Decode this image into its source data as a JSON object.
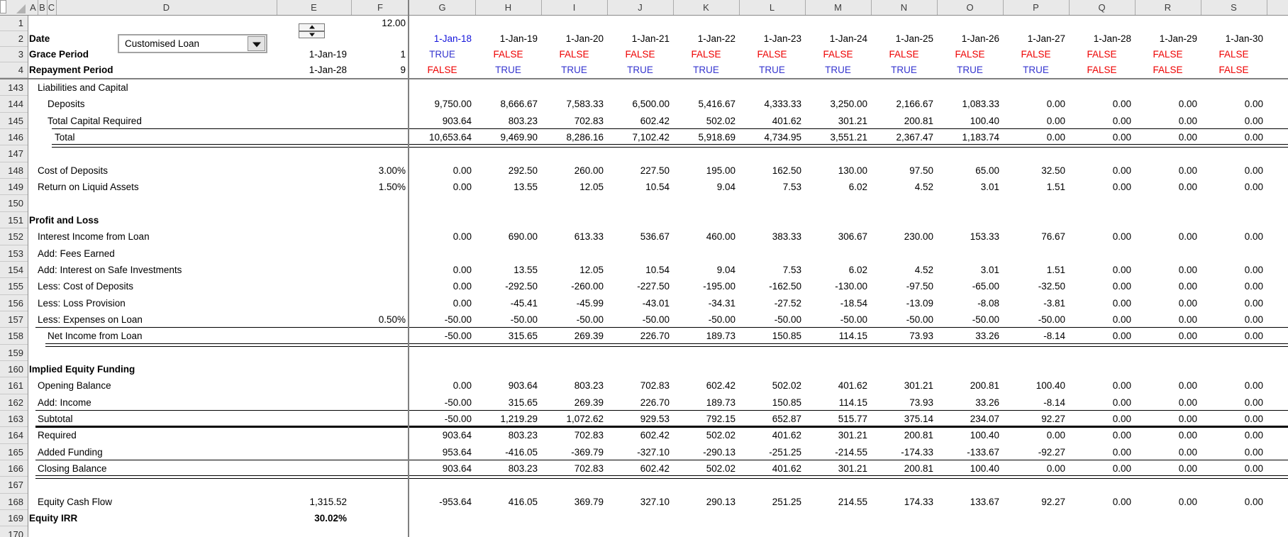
{
  "sheet": {
    "colors": {
      "true_text": "#3535CF",
      "false_text": "#EE0000",
      "input_blue": "#1414DB",
      "header_bg": "#E9E9E9",
      "body_text": "#000000"
    },
    "column_letters": [
      "A",
      "B",
      "C",
      "D",
      "E",
      "F",
      "G",
      "H",
      "I",
      "J",
      "K",
      "L",
      "M",
      "N",
      "O",
      "P",
      "Q",
      "R",
      "S"
    ],
    "controls": {
      "loan_type_dropdown": {
        "value": "Customised Loan"
      }
    },
    "frozen_rows": {
      "row1": {
        "num": "1",
        "f": "12.00"
      },
      "row2": {
        "num": "2",
        "label": "Date",
        "dates": [
          "1-Jan-18",
          "1-Jan-19",
          "1-Jan-20",
          "1-Jan-21",
          "1-Jan-22",
          "1-Jan-23",
          "1-Jan-24",
          "1-Jan-25",
          "1-Jan-26",
          "1-Jan-27",
          "1-Jan-28",
          "1-Jan-29",
          "1-Jan-30"
        ]
      },
      "row3": {
        "num": "3",
        "label": "Grace Period",
        "e": "1-Jan-19",
        "f": "1",
        "flags": [
          "TRUE",
          "FALSE",
          "FALSE",
          "FALSE",
          "FALSE",
          "FALSE",
          "FALSE",
          "FALSE",
          "FALSE",
          "FALSE",
          "FALSE",
          "FALSE",
          "FALSE"
        ]
      },
      "row4": {
        "num": "4",
        "label": "Repayment Period",
        "e": "1-Jan-28",
        "f": "9",
        "flags": [
          "FALSE",
          "TRUE",
          "TRUE",
          "TRUE",
          "TRUE",
          "TRUE",
          "TRUE",
          "TRUE",
          "TRUE",
          "TRUE",
          "FALSE",
          "FALSE",
          "FALSE"
        ]
      }
    },
    "body_rows": [
      {
        "num": "143",
        "label": "Liabilities and Capital",
        "indent": 1
      },
      {
        "num": "144",
        "label": "Deposits",
        "indent": 2,
        "values": [
          "9,750.00",
          "8,666.67",
          "7,583.33",
          "6,500.00",
          "5,416.67",
          "4,333.33",
          "3,250.00",
          "2,166.67",
          "1,083.33",
          "0.00",
          "0.00",
          "0.00",
          "0.00"
        ]
      },
      {
        "num": "145",
        "label": "Total Capital Required",
        "indent": 2,
        "border": "single",
        "border_x": 73,
        "values": [
          "903.64",
          "803.23",
          "702.83",
          "602.42",
          "502.02",
          "401.62",
          "301.21",
          "200.81",
          "100.40",
          "0.00",
          "0.00",
          "0.00",
          "0.00"
        ]
      },
      {
        "num": "146",
        "label": "Total",
        "indent": 3,
        "border": "double",
        "border_x": 73,
        "values": [
          "10,653.64",
          "9,469.90",
          "8,286.16",
          "7,102.42",
          "5,918.69",
          "4,734.95",
          "3,551.21",
          "2,367.47",
          "1,183.74",
          "0.00",
          "0.00",
          "0.00",
          "0.00"
        ]
      },
      {
        "num": "147"
      },
      {
        "num": "148",
        "label": "Cost of Deposits",
        "indent": 1,
        "f": "3.00%",
        "values": [
          "0.00",
          "292.50",
          "260.00",
          "227.50",
          "195.00",
          "162.50",
          "130.00",
          "97.50",
          "65.00",
          "32.50",
          "0.00",
          "0.00",
          "0.00"
        ]
      },
      {
        "num": "149",
        "label": "Return on Liquid Assets",
        "indent": 1,
        "f": "1.50%",
        "values": [
          "0.00",
          "13.55",
          "12.05",
          "10.54",
          "9.04",
          "7.53",
          "6.02",
          "4.52",
          "3.01",
          "1.51",
          "0.00",
          "0.00",
          "0.00"
        ]
      },
      {
        "num": "150"
      },
      {
        "num": "151",
        "label": "Profit and Loss",
        "indent": 0,
        "bold": true
      },
      {
        "num": "152",
        "label": "Interest Income from Loan",
        "indent": 1,
        "values": [
          "0.00",
          "690.00",
          "613.33",
          "536.67",
          "460.00",
          "383.33",
          "306.67",
          "230.00",
          "153.33",
          "76.67",
          "0.00",
          "0.00",
          "0.00"
        ]
      },
      {
        "num": "153",
        "label": "Add: Fees Earned",
        "indent": 1
      },
      {
        "num": "154",
        "label": "Add: Interest on Safe Investments",
        "indent": 1,
        "values": [
          "0.00",
          "13.55",
          "12.05",
          "10.54",
          "9.04",
          "7.53",
          "6.02",
          "4.52",
          "3.01",
          "1.51",
          "0.00",
          "0.00",
          "0.00"
        ]
      },
      {
        "num": "155",
        "label": "Less: Cost of Deposits",
        "indent": 1,
        "values": [
          "0.00",
          "-292.50",
          "-260.00",
          "-227.50",
          "-195.00",
          "-162.50",
          "-130.00",
          "-97.50",
          "-65.00",
          "-32.50",
          "0.00",
          "0.00",
          "0.00"
        ]
      },
      {
        "num": "156",
        "label": "Less: Loss Provision",
        "indent": 1,
        "values": [
          "0.00",
          "-45.41",
          "-45.99",
          "-43.01",
          "-34.31",
          "-27.52",
          "-18.54",
          "-13.09",
          "-8.08",
          "-3.81",
          "0.00",
          "0.00",
          "0.00"
        ]
      },
      {
        "num": "157",
        "label": "Less: Expenses on Loan",
        "indent": 1,
        "f": "0.50%",
        "border": "single",
        "border_x": 50,
        "values": [
          "-50.00",
          "-50.00",
          "-50.00",
          "-50.00",
          "-50.00",
          "-50.00",
          "-50.00",
          "-50.00",
          "-50.00",
          "-50.00",
          "0.00",
          "0.00",
          "0.00"
        ]
      },
      {
        "num": "158",
        "label": "Net Income from Loan",
        "indent": 2,
        "border": "double",
        "border_x": 64,
        "values": [
          "-50.00",
          "315.65",
          "269.39",
          "226.70",
          "189.73",
          "150.85",
          "114.15",
          "73.93",
          "33.26",
          "-8.14",
          "0.00",
          "0.00",
          "0.00"
        ]
      },
      {
        "num": "159"
      },
      {
        "num": "160",
        "label": "Implied Equity Funding",
        "indent": 0,
        "bold": true
      },
      {
        "num": "161",
        "label": "Opening Balance",
        "indent": 1,
        "values": [
          "0.00",
          "903.64",
          "803.23",
          "702.83",
          "602.42",
          "502.02",
          "401.62",
          "301.21",
          "200.81",
          "100.40",
          "0.00",
          "0.00",
          "0.00"
        ]
      },
      {
        "num": "162",
        "label": "Add: Income",
        "indent": 1,
        "border": "single",
        "border_x": 50,
        "values": [
          "-50.00",
          "315.65",
          "269.39",
          "226.70",
          "189.73",
          "150.85",
          "114.15",
          "73.93",
          "33.26",
          "-8.14",
          "0.00",
          "0.00",
          "0.00"
        ]
      },
      {
        "num": "163",
        "label": "Subtotal",
        "indent": 1,
        "border": "thick",
        "border_x": 50,
        "values": [
          "-50.00",
          "1,219.29",
          "1,072.62",
          "929.53",
          "792.15",
          "652.87",
          "515.77",
          "375.14",
          "234.07",
          "92.27",
          "0.00",
          "0.00",
          "0.00"
        ]
      },
      {
        "num": "164",
        "label": "Required",
        "indent": 1,
        "values": [
          "903.64",
          "803.23",
          "702.83",
          "602.42",
          "502.02",
          "401.62",
          "301.21",
          "200.81",
          "100.40",
          "0.00",
          "0.00",
          "0.00",
          "0.00"
        ]
      },
      {
        "num": "165",
        "label": "Added Funding",
        "indent": 1,
        "border": "single",
        "border_x": 50,
        "values": [
          "953.64",
          "-416.05",
          "-369.79",
          "-327.10",
          "-290.13",
          "-251.25",
          "-214.55",
          "-174.33",
          "-133.67",
          "-92.27",
          "0.00",
          "0.00",
          "0.00"
        ]
      },
      {
        "num": "166",
        "label": "Closing Balance",
        "indent": 1,
        "border": "double",
        "border_x": 50,
        "values": [
          "903.64",
          "803.23",
          "702.83",
          "602.42",
          "502.02",
          "401.62",
          "301.21",
          "200.81",
          "100.40",
          "0.00",
          "0.00",
          "0.00",
          "0.00"
        ]
      },
      {
        "num": "167"
      },
      {
        "num": "168",
        "label": "Equity Cash Flow",
        "indent": 1,
        "e": "1,315.52",
        "values": [
          "-953.64",
          "416.05",
          "369.79",
          "327.10",
          "290.13",
          "251.25",
          "214.55",
          "174.33",
          "133.67",
          "92.27",
          "0.00",
          "0.00",
          "0.00"
        ]
      },
      {
        "num": "169",
        "label": "Equity IRR",
        "indent": 0,
        "bold": true,
        "e": "30.02%",
        "e_bold": true
      }
    ],
    "partial_row": {
      "num": "170"
    }
  }
}
